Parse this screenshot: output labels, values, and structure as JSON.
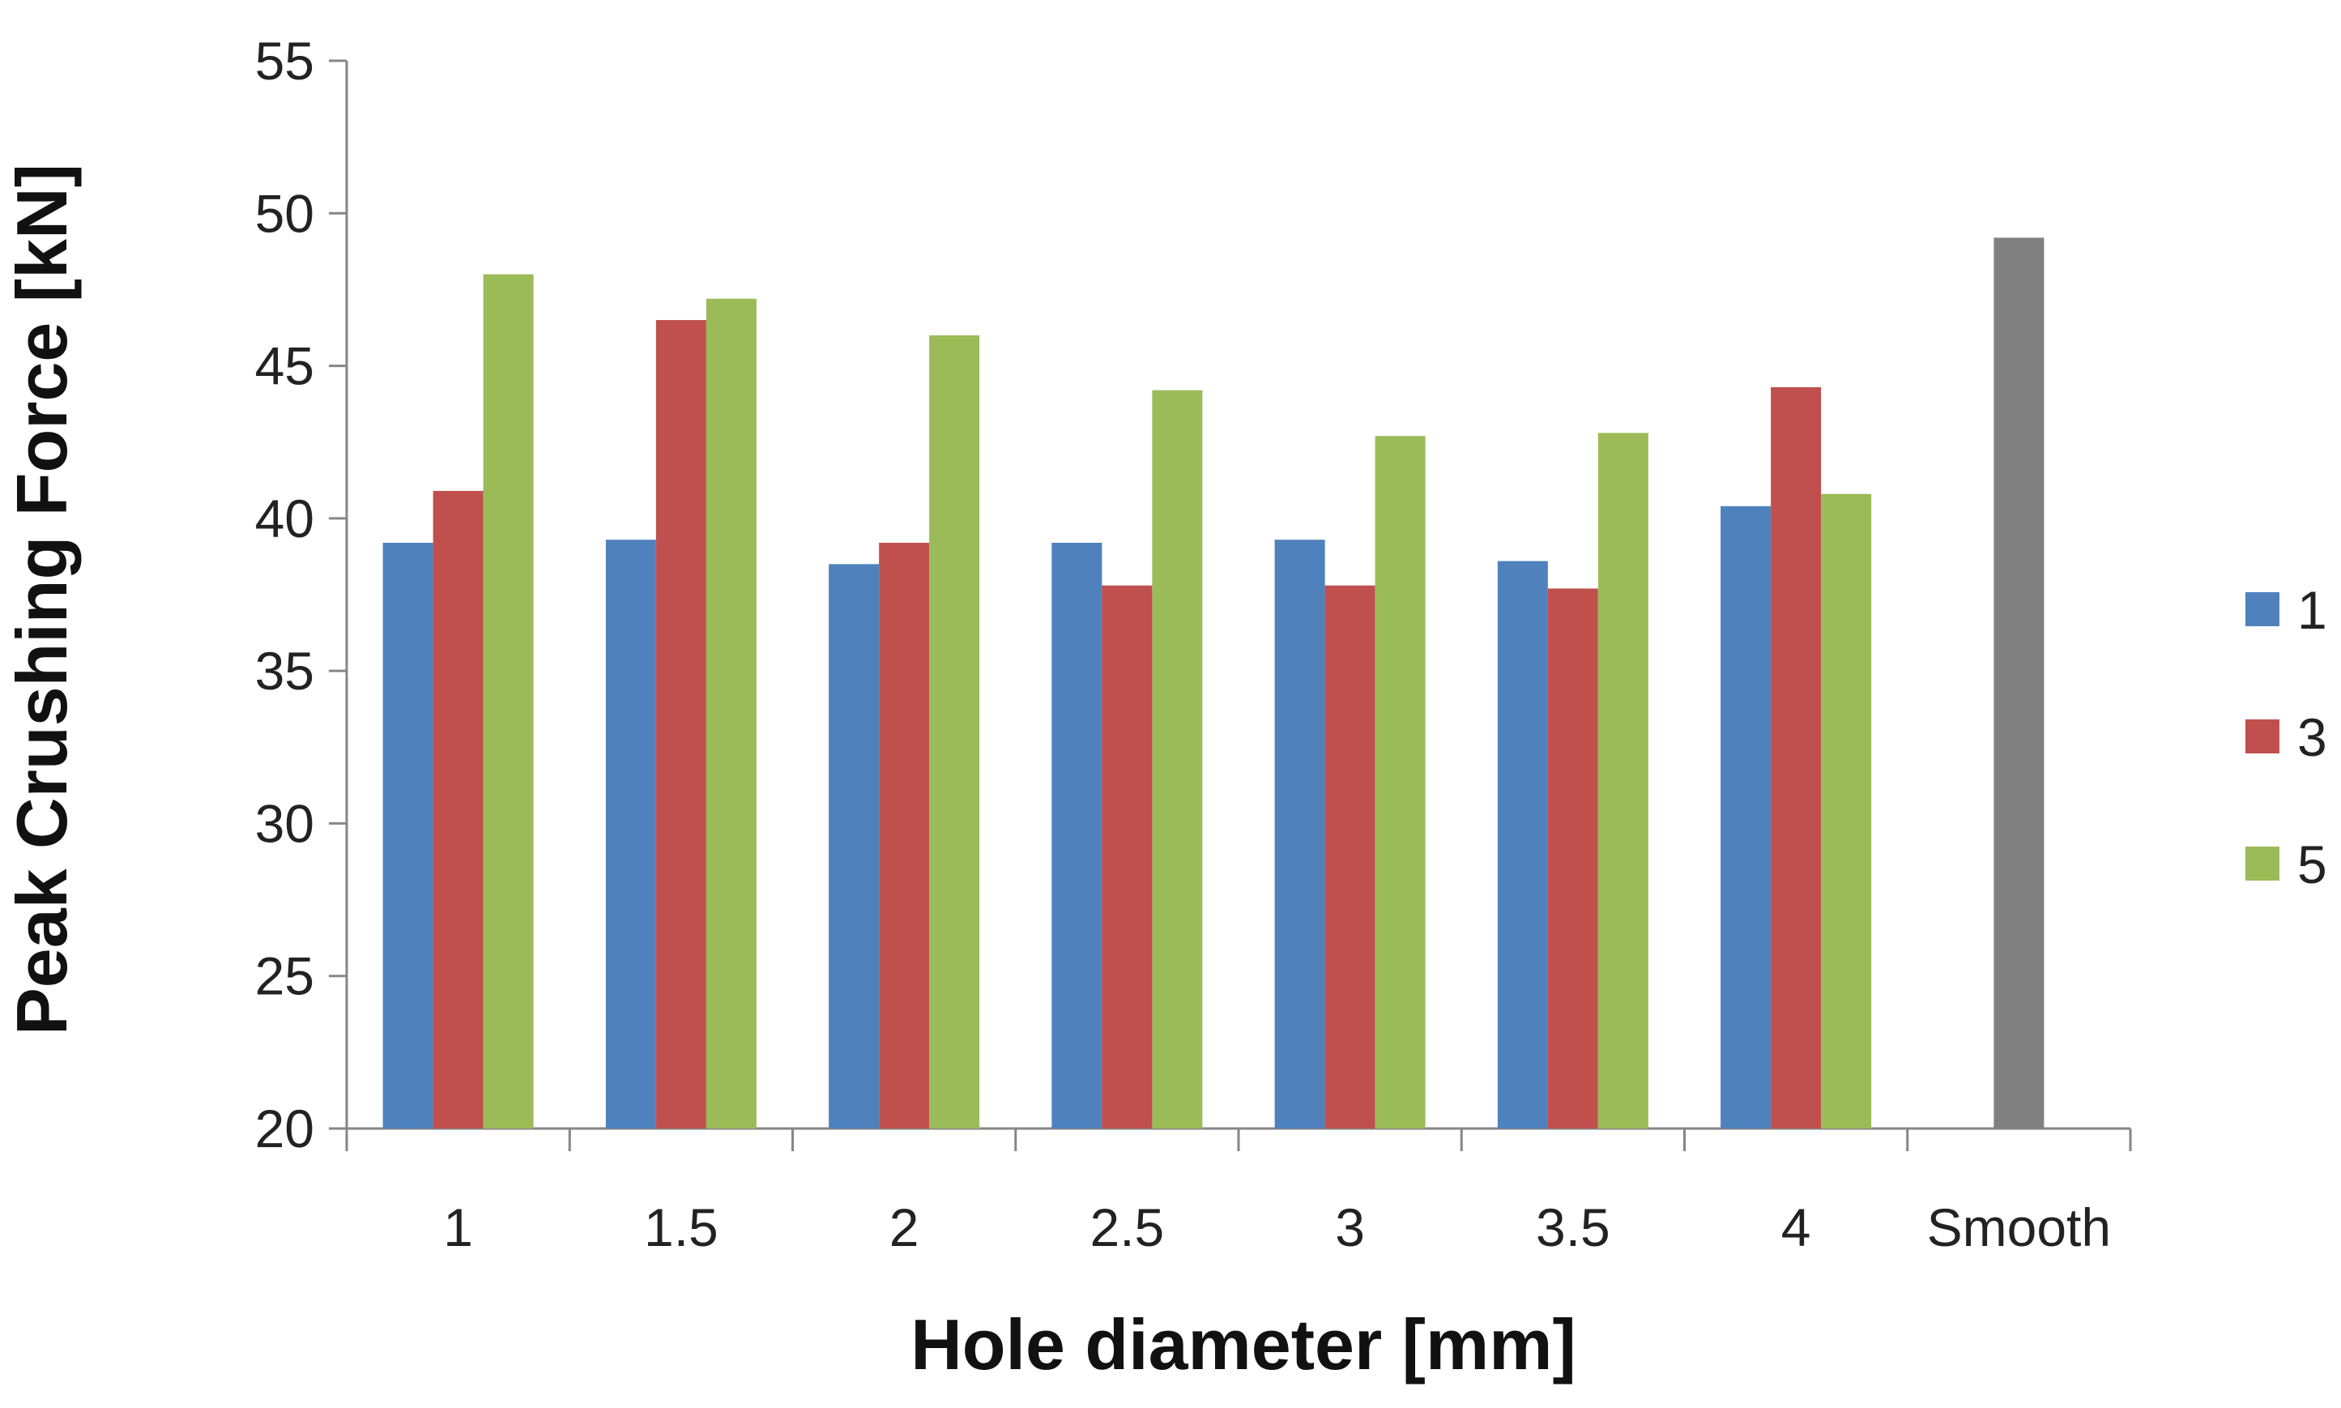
{
  "chart_data": {
    "type": "bar",
    "title": "",
    "xlabel": "Hole diameter [mm]",
    "ylabel": "Peak Crushing Force [kN]",
    "ylim": [
      20,
      55
    ],
    "yticks": [
      20,
      25,
      30,
      35,
      40,
      45,
      50,
      55
    ],
    "categories": [
      "1",
      "1.5",
      "2",
      "2.5",
      "3",
      "3.5",
      "4",
      "Smooth"
    ],
    "series": [
      {
        "name": "1",
        "color": "#4f81bd",
        "values": [
          39.2,
          39.3,
          38.5,
          39.2,
          39.3,
          38.6,
          40.4,
          null
        ]
      },
      {
        "name": "3",
        "color": "#c0504d",
        "values": [
          40.9,
          46.5,
          39.2,
          37.8,
          37.8,
          37.7,
          44.3,
          null
        ]
      },
      {
        "name": "5",
        "color": "#9bbb59",
        "values": [
          48.0,
          47.2,
          46.0,
          44.2,
          42.7,
          42.8,
          40.8,
          null
        ]
      }
    ],
    "extra_bars": [
      {
        "category": "Smooth",
        "value": 49.2,
        "color": "#808080"
      }
    ],
    "grid": false,
    "legend": "right"
  }
}
